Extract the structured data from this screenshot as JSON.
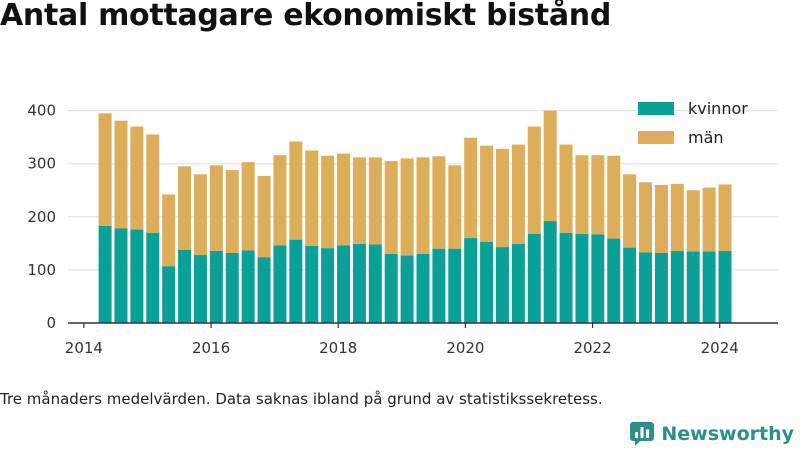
{
  "title": "Antal mottagare ekonomiskt bistånd",
  "caption": "Tre månaders medelvärden. Data saknas ibland på grund av statistikssekretess.",
  "brand": {
    "name": "Newsworthy",
    "icon": "newsworthy-logo-icon",
    "color": "#2b8f8a"
  },
  "chart_data": {
    "type": "bar",
    "stacked": true,
    "x": [
      "2014-05",
      "2014-08",
      "2014-11",
      "2015-02",
      "2015-05",
      "2015-08",
      "2015-11",
      "2016-02",
      "2016-05",
      "2016-08",
      "2016-11",
      "2017-02",
      "2017-05",
      "2017-08",
      "2017-11",
      "2018-02",
      "2018-05",
      "2018-08",
      "2018-11",
      "2019-02",
      "2019-05",
      "2019-08",
      "2019-11",
      "2020-02",
      "2020-05",
      "2020-08",
      "2020-11",
      "2021-02",
      "2021-05",
      "2021-08",
      "2021-11",
      "2022-02",
      "2022-05",
      "2022-08",
      "2022-11",
      "2023-02",
      "2023-05",
      "2023-08",
      "2023-11",
      "2024-02"
    ],
    "series": [
      {
        "name": "kvinnor",
        "color": "#0aa097",
        "values": [
          183,
          178,
          176,
          170,
          107,
          138,
          128,
          136,
          132,
          137,
          124,
          146,
          157,
          145,
          141,
          146,
          149,
          148,
          130,
          127,
          130,
          140,
          140,
          160,
          153,
          143,
          149,
          168,
          192,
          170,
          168,
          167,
          159,
          142,
          133,
          132,
          136,
          135,
          135,
          136
        ]
      },
      {
        "name": "män",
        "color": "#dcad5b",
        "values": [
          212,
          203,
          194,
          185,
          135,
          157,
          152,
          161,
          156,
          166,
          153,
          170,
          185,
          180,
          174,
          173,
          163,
          164,
          175,
          183,
          182,
          174,
          157,
          189,
          181,
          185,
          187,
          202,
          208,
          166,
          148,
          149,
          156,
          138,
          132,
          128,
          126,
          115,
          120,
          125
        ]
      }
    ],
    "x_ticks": [
      "2014",
      "2016",
      "2018",
      "2020",
      "2022",
      "2024"
    ],
    "y_ticks": [
      "0",
      "100",
      "200",
      "300",
      "400"
    ],
    "ylim": [
      0,
      420
    ],
    "xlim": [
      "2013-10",
      "2024-12"
    ],
    "grid": "horizontal",
    "legend_position": "top-right",
    "xlabel": "",
    "ylabel": ""
  }
}
